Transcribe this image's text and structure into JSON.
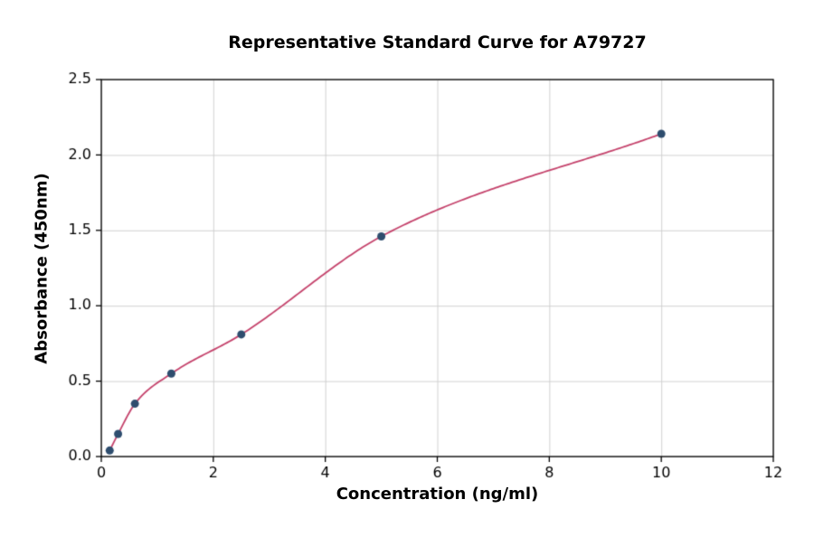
{
  "chart_data": {
    "type": "scatter",
    "title": "Representative Standard Curve for A79727",
    "xlabel": "Concentration (ng/ml)",
    "ylabel": "Absorbance (450nm)",
    "xlim": [
      0,
      12
    ],
    "ylim": [
      0,
      2.5
    ],
    "x_ticks": [
      0,
      2,
      4,
      6,
      8,
      10,
      12
    ],
    "y_ticks": [
      0.0,
      0.5,
      1.0,
      1.5,
      2.0,
      2.5
    ],
    "grid": true,
    "legend": "none",
    "points": {
      "x": [
        0.15,
        0.3,
        0.6,
        1.25,
        2.5,
        5,
        10
      ],
      "y": [
        0.04,
        0.15,
        0.35,
        0.55,
        0.81,
        1.46,
        2.14
      ]
    },
    "curve_color": "#c4426b",
    "point_color": "#2e4d6e",
    "grid_color": "#cccccc",
    "axis_color": "#000000"
  }
}
